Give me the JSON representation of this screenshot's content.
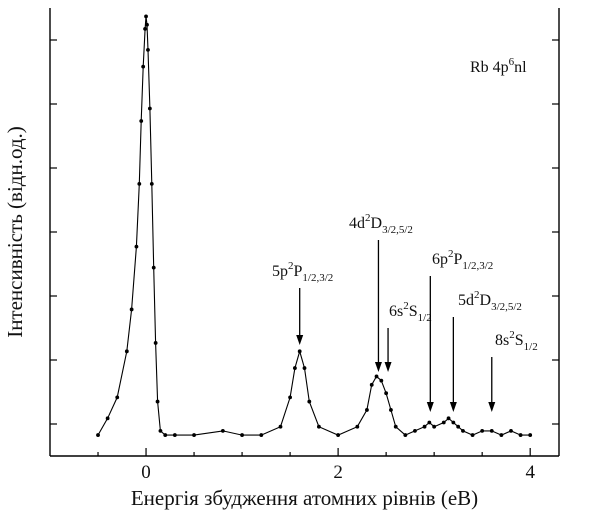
{
  "chart_data": {
    "type": "line",
    "title": "",
    "xlabel": "Енергія збудження атомних рівнів (еВ)",
    "ylabel": "Інтенсивність (відн.од.)",
    "xlim": [
      -1.0,
      4.3
    ],
    "ylim": [
      -0.05,
      1.02
    ],
    "x_ticks": [
      0,
      2,
      4
    ],
    "y_tick_labels": false,
    "grid": false,
    "legend": "none",
    "inset_text": {
      "base": "Rb  4p",
      "sup": "6",
      "tail": "nl"
    },
    "series": [
      {
        "marker": "dot",
        "color": "#000000",
        "x": [
          -0.5,
          -0.4,
          -0.3,
          -0.2,
          -0.15,
          -0.1,
          -0.07,
          -0.05,
          -0.03,
          -0.01,
          0.0,
          0.01,
          0.02,
          0.04,
          0.06,
          0.08,
          0.1,
          0.12,
          0.15,
          0.2,
          0.3,
          0.5,
          0.8,
          1.0,
          1.2,
          1.4,
          1.5,
          1.55,
          1.6,
          1.65,
          1.7,
          1.8,
          2.0,
          2.2,
          2.3,
          2.35,
          2.4,
          2.45,
          2.5,
          2.55,
          2.6,
          2.7,
          2.8,
          2.9,
          2.95,
          3.0,
          3.1,
          3.15,
          3.2,
          3.25,
          3.3,
          3.4,
          3.5,
          3.6,
          3.7,
          3.8,
          3.9,
          4.0
        ],
        "y": [
          0.0,
          0.04,
          0.09,
          0.2,
          0.3,
          0.45,
          0.6,
          0.75,
          0.88,
          0.97,
          1.0,
          0.98,
          0.92,
          0.78,
          0.6,
          0.4,
          0.22,
          0.08,
          0.01,
          0.0,
          0.0,
          0.0,
          0.01,
          0.0,
          0.0,
          0.02,
          0.09,
          0.16,
          0.2,
          0.16,
          0.08,
          0.02,
          0.0,
          0.02,
          0.06,
          0.12,
          0.14,
          0.13,
          0.1,
          0.06,
          0.02,
          0.0,
          0.01,
          0.02,
          0.03,
          0.02,
          0.03,
          0.04,
          0.03,
          0.02,
          0.01,
          0.0,
          0.01,
          0.01,
          0.0,
          0.01,
          0.0,
          0.0
        ]
      }
    ],
    "annotations": [
      {
        "base": "5p",
        "sup": "2",
        "term": "P",
        "sub": "1/2,3/2",
        "x": 1.6
      },
      {
        "base": "4d",
        "sup": "2",
        "term": "D",
        "sub": "3/2,5/2",
        "x": 2.42
      },
      {
        "base": "6s",
        "sup": "2",
        "term": "S",
        "sub": "1/2",
        "x": 2.52
      },
      {
        "base": "6p",
        "sup": "2",
        "term": "P",
        "sub": "1/2,3/2",
        "x": 2.96
      },
      {
        "base": "5d",
        "sup": "2",
        "term": "D",
        "sub": "3/2,5/2",
        "x": 3.2
      },
      {
        "base": "8s",
        "sup": "2",
        "term": "S",
        "sub": "1/2",
        "x": 3.6
      }
    ]
  }
}
